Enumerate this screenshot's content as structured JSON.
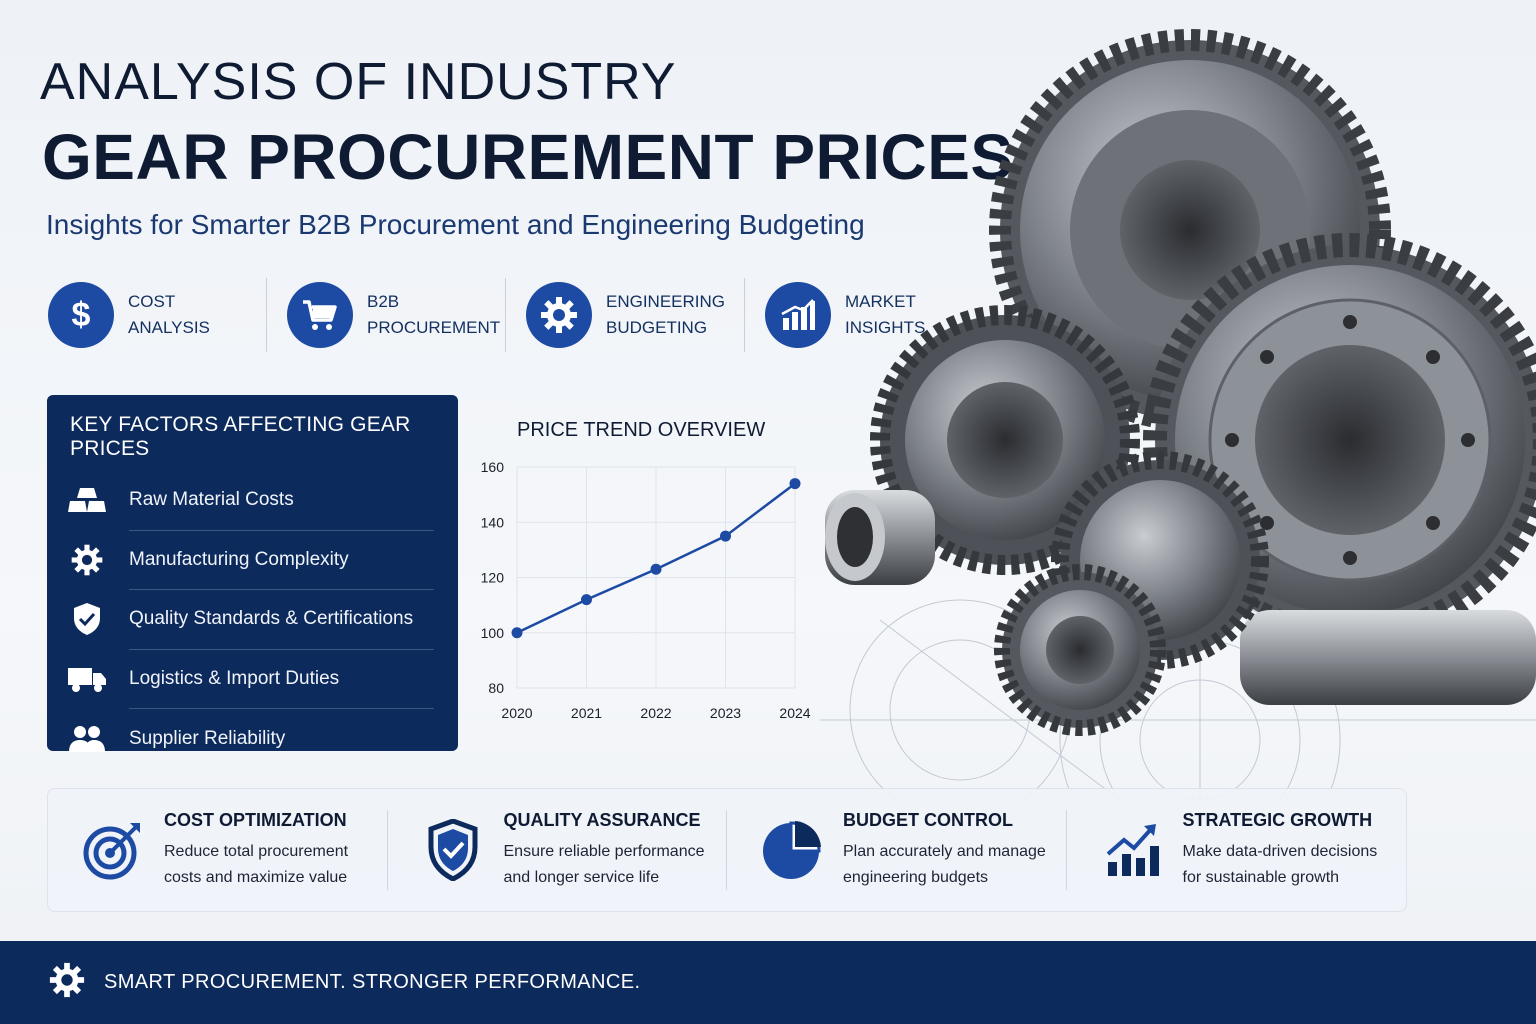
{
  "header": {
    "title_line1": "ANALYSIS OF INDUSTRY",
    "title_line2": "GEAR PROCUREMENT PRICES",
    "subtitle": "Insights for Smarter B2B Procurement and Engineering Budgeting"
  },
  "categories": [
    {
      "line1": "COST",
      "line2": "ANALYSIS",
      "icon": "dollar-icon"
    },
    {
      "line1": "B2B",
      "line2": "PROCUREMENT",
      "icon": "cart-icon"
    },
    {
      "line1": "ENGINEERING",
      "line2": "BUDGETING",
      "icon": "gear-icon"
    },
    {
      "line1": "MARKET",
      "line2": "INSIGHTS",
      "icon": "bar-chart-icon"
    }
  ],
  "factors": {
    "title": "KEY FACTORS AFFECTING GEAR PRICES",
    "items": [
      {
        "label": "Raw Material Costs",
        "icon": "material-blocks-icon"
      },
      {
        "label": "Manufacturing Complexity",
        "icon": "cog-icon"
      },
      {
        "label": "Quality Standards & Certifications",
        "icon": "shield-check-icon"
      },
      {
        "label": "Logistics & Import Duties",
        "icon": "truck-icon"
      },
      {
        "label": "Supplier Reliability",
        "icon": "users-icon"
      }
    ]
  },
  "chart_title": "PRICE TREND OVERVIEW",
  "chart_data": {
    "type": "line",
    "x": [
      "2020",
      "2021",
      "2022",
      "2023",
      "2024"
    ],
    "values": [
      100,
      112,
      123,
      135,
      154
    ],
    "title": "PRICE TREND OVERVIEW",
    "xlabel": "",
    "ylabel": "",
    "ylim": [
      80,
      160
    ],
    "yticks": [
      80,
      100,
      120,
      140,
      160
    ],
    "grid": true,
    "color": "#1d4aa3"
  },
  "benefits": [
    {
      "title": "COST OPTIMIZATION",
      "text": "Reduce total procurement costs and maximize value",
      "icon": "target-icon"
    },
    {
      "title": "QUALITY ASSURANCE",
      "text": "Ensure reliable performance and longer service life",
      "icon": "shield-check-icon"
    },
    {
      "title": "BUDGET CONTROL",
      "text": "Plan accurately and manage engineering budgets",
      "icon": "pie-chart-icon"
    },
    {
      "title": "STRATEGIC GROWTH",
      "text": "Make data-driven decisions for sustainable growth",
      "icon": "growth-chart-icon"
    }
  ],
  "footer": {
    "text": "SMART PROCUREMENT. STRONGER PERFORMANCE.",
    "icon": "gear-icon"
  },
  "colors": {
    "navy": "#0d2a5c",
    "accent": "#1d4aa3"
  }
}
